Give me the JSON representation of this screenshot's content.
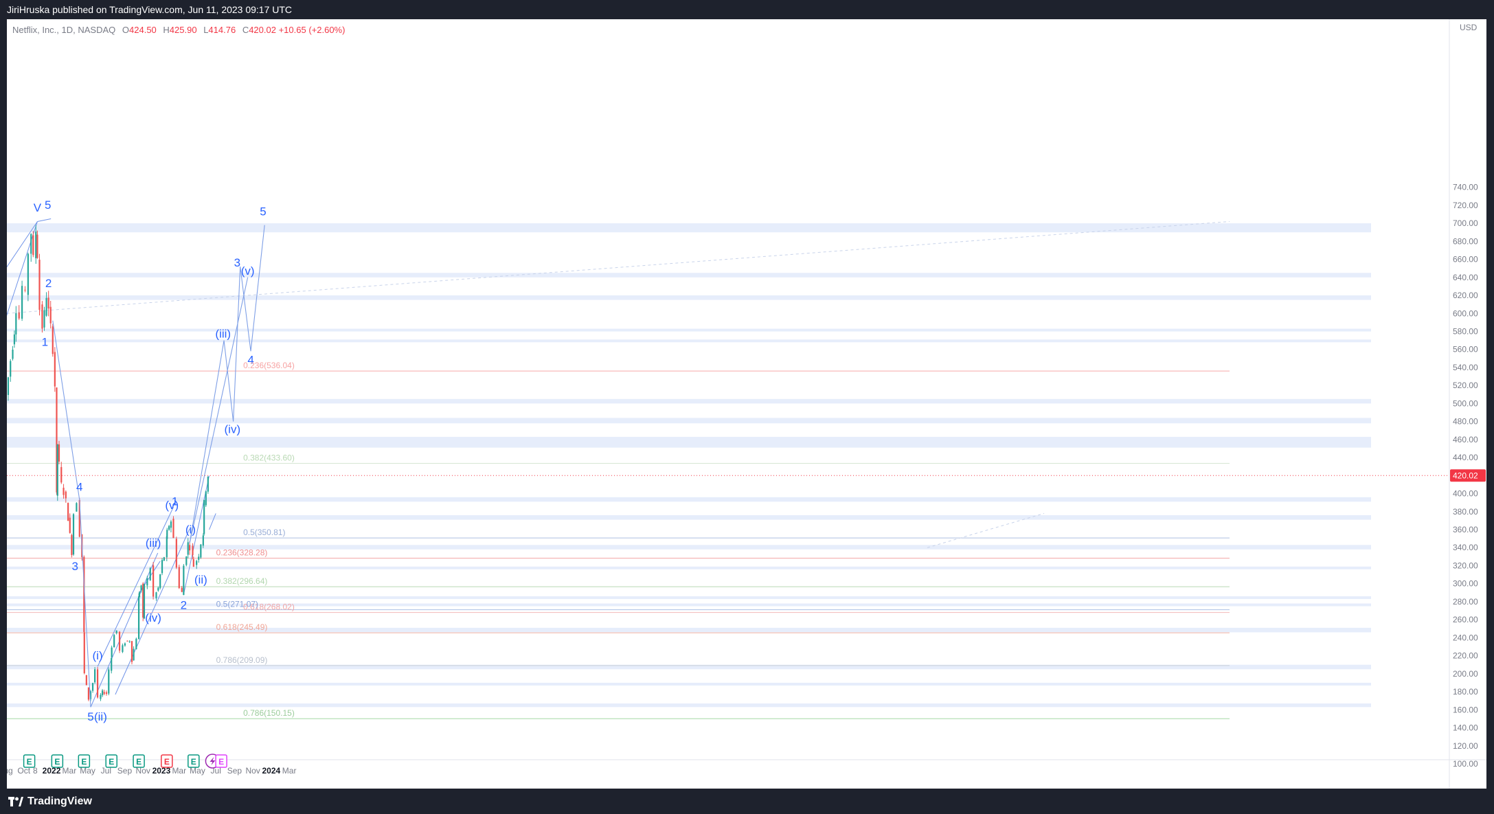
{
  "header": {
    "published": "JiriHruska published on TradingView.com, Jun 11, 2023 09:17 UTC"
  },
  "legend": {
    "symbol": "Netflix, Inc., 1D, NASDAQ",
    "o_label": "O",
    "o_value": "424.50",
    "h_label": "H",
    "h_value": "425.90",
    "l_label": "L",
    "l_value": "414.76",
    "c_label": "C",
    "c_value": "420.02",
    "change": "+10.65 (+2.60%)"
  },
  "footer": {
    "brand": "TradingView"
  },
  "colors": {
    "up": "#26a69a",
    "down": "#ef5350",
    "wave": "#2962ff",
    "zone": "#e6edfb",
    "price_tag": "#f23645"
  },
  "chart_data": {
    "type": "candlestick",
    "currency": "USD",
    "ylim": [
      100,
      750
    ],
    "y_ticks": [
      "100.00",
      "120.00",
      "140.00",
      "160.00",
      "180.00",
      "200.00",
      "220.00",
      "240.00",
      "260.00",
      "280.00",
      "300.00",
      "320.00",
      "340.00",
      "360.00",
      "380.00",
      "400.00",
      "420.00",
      "440.00",
      "460.00",
      "480.00",
      "500.00",
      "520.00",
      "540.00",
      "560.00",
      "580.00",
      "600.00",
      "620.00",
      "640.00",
      "660.00",
      "680.00",
      "700.00",
      "720.00",
      "740.00"
    ],
    "x_ticks": [
      "Aug",
      "Oct",
      "8",
      "2022",
      "Mar",
      "May",
      "Jul",
      "Sep",
      "Nov",
      "2023",
      "Mar",
      "May",
      "Jul",
      "Sep",
      "Nov",
      "2024",
      "Mar"
    ],
    "last_price": "420.02",
    "price_path": [
      [
        "2021-08-01",
        515
      ],
      [
        "2021-08-10",
        510
      ],
      [
        "2021-08-25",
        548
      ],
      [
        "2021-09-05",
        580
      ],
      [
        "2021-09-15",
        605
      ],
      [
        "2021-09-25",
        595
      ],
      [
        "2021-10-05",
        630
      ],
      [
        "2021-10-15",
        620
      ],
      [
        "2021-10-25",
        668
      ],
      [
        "2021-11-01",
        690
      ],
      [
        "2021-11-10",
        660
      ],
      [
        "2021-11-15",
        692
      ],
      [
        "2021-11-22",
        665
      ],
      [
        "2021-12-01",
        605
      ],
      [
        "2021-12-08",
        585
      ],
      [
        "2021-12-15",
        600
      ],
      [
        "2021-12-22",
        620
      ],
      [
        "2022-01-05",
        585
      ],
      [
        "2022-01-12",
        560
      ],
      [
        "2022-01-18",
        520
      ],
      [
        "2022-01-21",
        397
      ],
      [
        "2022-01-26",
        455
      ],
      [
        "2022-02-10",
        410
      ],
      [
        "2022-02-25",
        392
      ],
      [
        "2022-03-15",
        335
      ],
      [
        "2022-03-25",
        378
      ],
      [
        "2022-04-04",
        392
      ],
      [
        "2022-04-12",
        355
      ],
      [
        "2022-04-19",
        330
      ],
      [
        "2022-04-20",
        245
      ],
      [
        "2022-04-27",
        200
      ],
      [
        "2022-05-11",
        172
      ],
      [
        "2022-05-25",
        190
      ],
      [
        "2022-06-03",
        205
      ],
      [
        "2022-06-13",
        172
      ],
      [
        "2022-06-25",
        180
      ],
      [
        "2022-07-10",
        178
      ],
      [
        "2022-07-19",
        205
      ],
      [
        "2022-07-20",
        218
      ],
      [
        "2022-08-05",
        243
      ],
      [
        "2022-08-15",
        248
      ],
      [
        "2022-08-25",
        225
      ],
      [
        "2022-09-10",
        235
      ],
      [
        "2022-09-25",
        237
      ],
      [
        "2022-10-01",
        215
      ],
      [
        "2022-10-18",
        240
      ],
      [
        "2022-10-20",
        285
      ],
      [
        "2022-11-01",
        298
      ],
      [
        "2022-11-05",
        260
      ],
      [
        "2022-11-15",
        300
      ],
      [
        "2022-11-25",
        305
      ],
      [
        "2022-12-05",
        318
      ],
      [
        "2022-12-15",
        285
      ],
      [
        "2022-12-28",
        295
      ],
      [
        "2023-01-10",
        325
      ],
      [
        "2023-01-19",
        330
      ],
      [
        "2023-01-20",
        350
      ],
      [
        "2023-02-02",
        365
      ],
      [
        "2023-02-10",
        370
      ],
      [
        "2023-02-20",
        350
      ],
      [
        "2023-03-01",
        320
      ],
      [
        "2023-03-10",
        295
      ],
      [
        "2023-03-16",
        290
      ],
      [
        "2023-03-25",
        320
      ],
      [
        "2023-04-05",
        345
      ],
      [
        "2023-04-15",
        340
      ],
      [
        "2023-04-18",
        330
      ],
      [
        "2023-04-28",
        320
      ],
      [
        "2023-05-12",
        332
      ],
      [
        "2023-05-20",
        345
      ],
      [
        "2023-05-23",
        355
      ],
      [
        "2023-05-29",
        390
      ],
      [
        "2023-06-05",
        405
      ],
      [
        "2023-06-09",
        420
      ]
    ],
    "zones": [
      [
        690,
        700
      ],
      [
        640,
        645
      ],
      [
        615,
        620
      ],
      [
        580,
        583
      ],
      [
        568,
        571
      ],
      [
        500,
        505
      ],
      [
        478,
        484
      ],
      [
        451,
        463
      ],
      [
        391,
        396
      ],
      [
        371,
        376
      ],
      [
        338,
        343
      ],
      [
        316,
        319
      ],
      [
        283,
        286
      ],
      [
        275,
        278
      ],
      [
        246,
        251
      ],
      [
        205,
        210
      ],
      [
        187,
        190
      ],
      [
        163,
        167
      ]
    ],
    "horizontal_lines": [
      {
        "price": 536.04,
        "color": "#f7a8a8"
      },
      {
        "price": 433.6,
        "color": "#d6e6d4"
      },
      {
        "price": 350.81,
        "color": "#aebfe0"
      },
      {
        "price": 268.02,
        "color": "#f3b8b8"
      },
      {
        "price": 150.15,
        "color": "#a6d8a6"
      },
      {
        "price": 328.28,
        "color": "#f3a4a4"
      },
      {
        "price": 296.64,
        "color": "#b7d9b3"
      },
      {
        "price": 271.07,
        "color": "#a9bfe4"
      },
      {
        "price": 245.49,
        "color": "#f3b2a2"
      },
      {
        "price": 209.09,
        "color": "#c8ced8"
      }
    ],
    "fib_labels": [
      {
        "text": "0.236(536.04)",
        "price": 536.04,
        "color": "#f7a3a3",
        "x": "2023-09-30"
      },
      {
        "text": "0.382(433.60)",
        "price": 433.6,
        "color": "#b9d9b4",
        "x": "2023-09-30"
      },
      {
        "text": "0.5(350.81)",
        "price": 350.81,
        "color": "#97acd6",
        "x": "2023-09-30"
      },
      {
        "text": "0.618(268.02)",
        "price": 268.02,
        "color": "#f1a5a5",
        "x": "2023-09-30"
      },
      {
        "text": "0.786(150.15)",
        "price": 150.15,
        "color": "#9bcc9b",
        "x": "2023-09-30"
      },
      {
        "text": "0.236(328.28)",
        "price": 328.28,
        "color": "#f08f8f",
        "x": "2023-07-02"
      },
      {
        "text": "0.382(296.64)",
        "price": 296.64,
        "color": "#b1d6ad",
        "x": "2023-07-02"
      },
      {
        "text": "0.5(271.07)",
        "price": 271.07,
        "color": "#8aa3d9",
        "x": "2023-07-02"
      },
      {
        "text": "0.618(245.49)",
        "price": 245.49,
        "color": "#f0a595",
        "x": "2023-07-02"
      },
      {
        "text": "0.786(209.09)",
        "price": 209.09,
        "color": "#b7bfcc",
        "x": "2023-07-02"
      }
    ],
    "wave_labels": [
      {
        "text": "V",
        "x": "2021-11-15",
        "price": 713
      },
      {
        "text": "5",
        "x": "2021-12-20",
        "price": 716
      },
      {
        "text": "2",
        "x": "2021-12-22",
        "price": 629
      },
      {
        "text": "1",
        "x": "2021-12-10",
        "price": 564
      },
      {
        "text": "4",
        "x": "2022-04-04",
        "price": 403
      },
      {
        "text": "3",
        "x": "2022-03-20",
        "price": 315
      },
      {
        "text": "5",
        "x": "2022-05-11",
        "price": 148
      },
      {
        "text": "(i)",
        "x": "2022-06-03",
        "price": 216
      },
      {
        "text": "(ii)",
        "x": "2022-06-13",
        "price": 148
      },
      {
        "text": "(iii)",
        "x": "2022-12-05",
        "price": 341
      },
      {
        "text": "(iv)",
        "x": "2022-12-05",
        "price": 258
      },
      {
        "text": "(v)",
        "x": "2023-02-05",
        "price": 383
      },
      {
        "text": "1",
        "x": "2023-02-15",
        "price": 387
      },
      {
        "text": "2",
        "x": "2023-03-16",
        "price": 272
      },
      {
        "text": "(i)",
        "x": "2023-04-08",
        "price": 356
      },
      {
        "text": "(ii)",
        "x": "2023-05-12",
        "price": 300
      },
      {
        "text": "(iii)",
        "x": "2023-07-25",
        "price": 573
      },
      {
        "text": "(iv)",
        "x": "2023-08-25",
        "price": 467
      },
      {
        "text": "3",
        "x": "2023-09-10",
        "price": 652
      },
      {
        "text": "(v)",
        "x": "2023-10-15",
        "price": 643
      },
      {
        "text": "4",
        "x": "2023-10-25",
        "price": 544
      },
      {
        "text": "5",
        "x": "2023-12-05",
        "price": 709
      }
    ],
    "wave_path": [
      [
        "2022-04-04",
        393
      ],
      [
        "2022-05-11",
        163
      ]
    ],
    "wave_path_decline": [
      [
        "2022-01-05",
        592
      ],
      [
        "2022-04-04",
        393
      ]
    ],
    "projection_path": [
      [
        "2023-04-05",
        345
      ],
      [
        "2023-07-28",
        570
      ],
      [
        "2023-08-28",
        480
      ],
      [
        "2023-09-20",
        652
      ],
      [
        "2023-10-25",
        558
      ],
      [
        "2023-12-10",
        698
      ]
    ],
    "projection_path_alt": [
      [
        "2023-04-05",
        345
      ],
      [
        "2023-10-15",
        640
      ]
    ],
    "channels": [
      [
        [
          "2021-07-01",
          562
        ],
        [
          "2021-11-15",
          702
        ]
      ],
      [
        [
          "2021-07-01",
          634
        ],
        [
          "2021-11-15",
          702
        ]
      ],
      [
        [
          "2021-11-15",
          702
        ],
        [
          "2021-12-30",
          705
        ]
      ],
      [
        [
          "2022-06-03",
          208
        ],
        [
          "2023-02-10",
          385
        ]
      ],
      [
        [
          "2022-05-11",
          163
        ],
        [
          "2022-12-20",
          334
        ]
      ],
      [
        [
          "2022-08-01",
          177
        ],
        [
          "2023-04-05",
          361
        ]
      ],
      [
        [
          "2022-10-20",
          290
        ],
        [
          "2022-12-28",
          325
        ]
      ],
      [
        [
          "2023-03-16",
          288
        ],
        [
          "2023-06-09",
          420
        ]
      ],
      [
        [
          "2023-06-09",
          360
        ],
        [
          "2023-07-01",
          378
        ]
      ]
    ],
    "earnings_markers": [
      {
        "x": "2021-10-19",
        "type": "E",
        "color": "#089981"
      },
      {
        "x": "2022-01-20",
        "type": "E",
        "color": "#089981"
      },
      {
        "x": "2022-04-19",
        "type": "E",
        "color": "#089981"
      },
      {
        "x": "2022-07-19",
        "type": "E",
        "color": "#089981"
      },
      {
        "x": "2022-10-18",
        "type": "E",
        "color": "#089981"
      },
      {
        "x": "2023-01-19",
        "type": "E",
        "color": "#f23645"
      },
      {
        "x": "2023-04-18",
        "type": "E",
        "color": "#089981"
      },
      {
        "x": "2023-06-20",
        "type": "bolt",
        "color": "#9c27b0"
      },
      {
        "x": "2023-07-19",
        "type": "E",
        "color": "#e040fb"
      }
    ]
  }
}
